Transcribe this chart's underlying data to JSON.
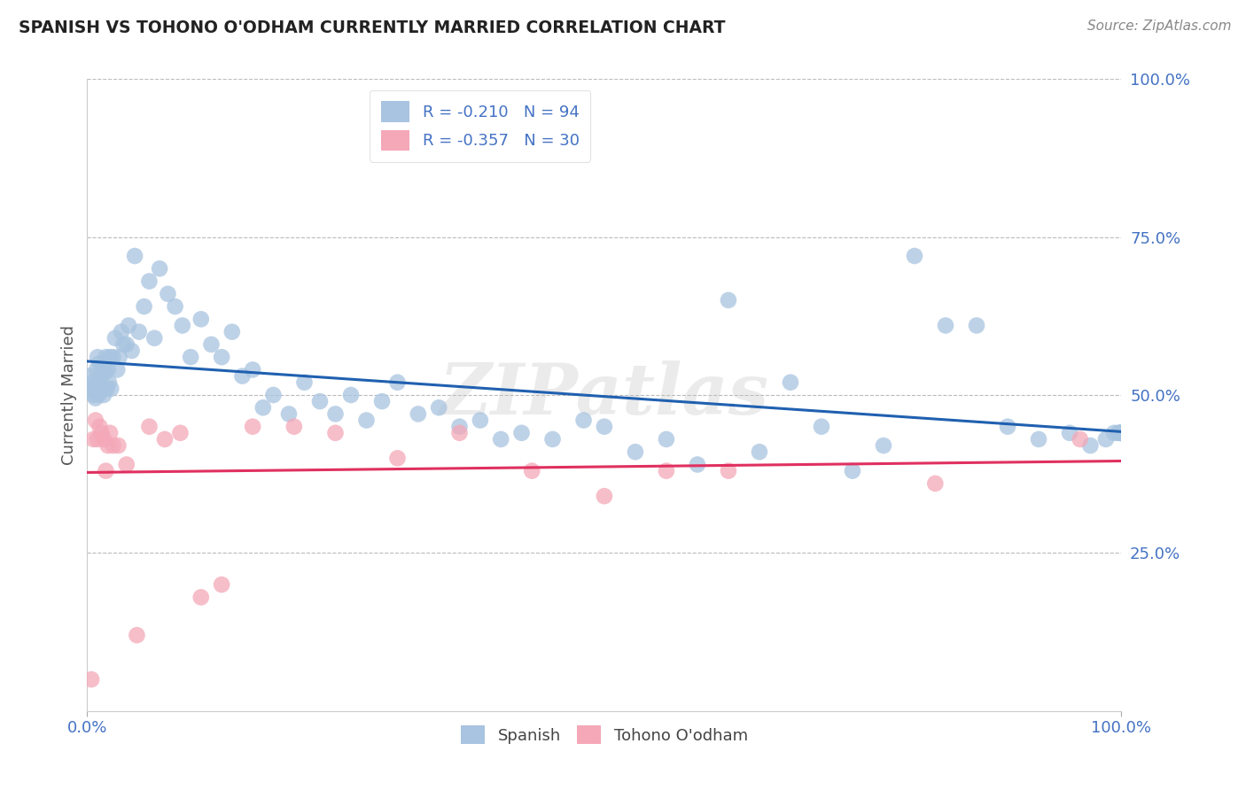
{
  "title": "SPANISH VS TOHONO O'ODHAM CURRENTLY MARRIED CORRELATION CHART",
  "source": "Source: ZipAtlas.com",
  "ylabel": "Currently Married",
  "xlim": [
    0.0,
    1.0
  ],
  "ylim": [
    0.0,
    1.0
  ],
  "yticks": [
    0.0,
    0.25,
    0.5,
    0.75,
    1.0
  ],
  "ytick_labels": [
    "",
    "25.0%",
    "50.0%",
    "75.0%",
    "100.0%"
  ],
  "xtick_labels": [
    "0.0%",
    "100.0%"
  ],
  "blue_R": -0.21,
  "blue_N": 94,
  "pink_R": -0.357,
  "pink_N": 30,
  "blue_color": "#a8c4e0",
  "pink_color": "#f4a8b8",
  "blue_line_color": "#2060b0",
  "pink_line_color": "#e03060",
  "legend_blue_label": "Spanish",
  "legend_pink_label": "Tohono O'odham",
  "watermark": "ZIPatlas",
  "background_color": "#ffffff",
  "grid_color": "#bbbbbb",
  "tick_color": "#4472c4",
  "blue_x": [
    0.003,
    0.004,
    0.005,
    0.006,
    0.007,
    0.008,
    0.009,
    0.009,
    0.01,
    0.01,
    0.011,
    0.012,
    0.012,
    0.013,
    0.014,
    0.015,
    0.015,
    0.016,
    0.017,
    0.018,
    0.019,
    0.02,
    0.021,
    0.022,
    0.023,
    0.025,
    0.027,
    0.029,
    0.031,
    0.033,
    0.035,
    0.038,
    0.04,
    0.043,
    0.046,
    0.05,
    0.055,
    0.06,
    0.065,
    0.07,
    0.078,
    0.085,
    0.092,
    0.1,
    0.11,
    0.12,
    0.13,
    0.14,
    0.15,
    0.16,
    0.17,
    0.18,
    0.195,
    0.21,
    0.225,
    0.24,
    0.255,
    0.27,
    0.285,
    0.3,
    0.32,
    0.34,
    0.36,
    0.38,
    0.4,
    0.42,
    0.45,
    0.48,
    0.5,
    0.53,
    0.56,
    0.59,
    0.62,
    0.65,
    0.68,
    0.71,
    0.74,
    0.77,
    0.8,
    0.83,
    0.86,
    0.89,
    0.92,
    0.95,
    0.97,
    0.985,
    0.993,
    0.997,
    0.999,
    0.999,
    0.999,
    1.0,
    1.0,
    1.0
  ],
  "blue_y": [
    0.53,
    0.51,
    0.52,
    0.5,
    0.515,
    0.495,
    0.505,
    0.54,
    0.51,
    0.56,
    0.5,
    0.52,
    0.55,
    0.53,
    0.515,
    0.51,
    0.545,
    0.5,
    0.535,
    0.56,
    0.51,
    0.54,
    0.52,
    0.56,
    0.51,
    0.56,
    0.59,
    0.54,
    0.56,
    0.6,
    0.58,
    0.58,
    0.61,
    0.57,
    0.72,
    0.6,
    0.64,
    0.68,
    0.59,
    0.7,
    0.66,
    0.64,
    0.61,
    0.56,
    0.62,
    0.58,
    0.56,
    0.6,
    0.53,
    0.54,
    0.48,
    0.5,
    0.47,
    0.52,
    0.49,
    0.47,
    0.5,
    0.46,
    0.49,
    0.52,
    0.47,
    0.48,
    0.45,
    0.46,
    0.43,
    0.44,
    0.43,
    0.46,
    0.45,
    0.41,
    0.43,
    0.39,
    0.65,
    0.41,
    0.52,
    0.45,
    0.38,
    0.42,
    0.72,
    0.61,
    0.61,
    0.45,
    0.43,
    0.44,
    0.42,
    0.43,
    0.44,
    0.44,
    0.44,
    0.44,
    0.44,
    0.44,
    0.44,
    0.44
  ],
  "pink_x": [
    0.004,
    0.006,
    0.008,
    0.01,
    0.012,
    0.014,
    0.016,
    0.018,
    0.02,
    0.022,
    0.025,
    0.03,
    0.038,
    0.048,
    0.06,
    0.075,
    0.09,
    0.11,
    0.13,
    0.16,
    0.2,
    0.24,
    0.3,
    0.36,
    0.43,
    0.5,
    0.56,
    0.62,
    0.82,
    0.96
  ],
  "pink_y": [
    0.05,
    0.43,
    0.46,
    0.43,
    0.45,
    0.44,
    0.43,
    0.38,
    0.42,
    0.44,
    0.42,
    0.42,
    0.39,
    0.12,
    0.45,
    0.43,
    0.44,
    0.18,
    0.2,
    0.45,
    0.45,
    0.44,
    0.4,
    0.44,
    0.38,
    0.34,
    0.38,
    0.38,
    0.36,
    0.43
  ]
}
